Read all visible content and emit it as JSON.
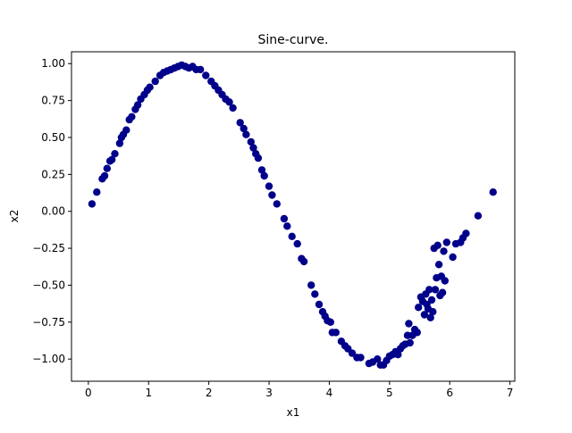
{
  "chart_data": {
    "type": "scatter",
    "title": "Sine-curve.",
    "xlabel": "x1",
    "ylabel": "x2",
    "xlim": [
      -0.28,
      7.08
    ],
    "ylim": [
      -1.15,
      1.08
    ],
    "xticks": [
      0,
      1,
      2,
      3,
      4,
      5,
      6,
      7
    ],
    "yticks": [
      1.0,
      0.75,
      0.5,
      0.25,
      0.0,
      -0.25,
      -0.5,
      -0.75,
      -1.0
    ],
    "ytick_labels": [
      "1.00",
      "0.75",
      "0.50",
      "0.25",
      "0.00",
      "−0.25",
      "−0.50",
      "−0.75",
      "−1.00"
    ],
    "grid": false,
    "legend": "none",
    "marker_color": "#00008b",
    "points": [
      [
        0.06,
        0.05
      ],
      [
        0.14,
        0.13
      ],
      [
        0.23,
        0.22
      ],
      [
        0.27,
        0.24
      ],
      [
        0.31,
        0.29
      ],
      [
        0.36,
        0.34
      ],
      [
        0.39,
        0.35
      ],
      [
        0.44,
        0.39
      ],
      [
        0.52,
        0.46
      ],
      [
        0.55,
        0.5
      ],
      [
        0.58,
        0.52
      ],
      [
        0.63,
        0.55
      ],
      [
        0.68,
        0.62
      ],
      [
        0.72,
        0.64
      ],
      [
        0.78,
        0.69
      ],
      [
        0.82,
        0.72
      ],
      [
        0.87,
        0.76
      ],
      [
        0.93,
        0.79
      ],
      [
        0.98,
        0.82
      ],
      [
        1.02,
        0.84
      ],
      [
        1.11,
        0.88
      ],
      [
        1.19,
        0.92
      ],
      [
        1.25,
        0.94
      ],
      [
        1.31,
        0.95
      ],
      [
        1.37,
        0.96
      ],
      [
        1.43,
        0.97
      ],
      [
        1.49,
        0.98
      ],
      [
        1.55,
        0.99
      ],
      [
        1.61,
        0.98
      ],
      [
        1.67,
        0.97
      ],
      [
        1.73,
        0.98
      ],
      [
        1.79,
        0.96
      ],
      [
        1.86,
        0.96
      ],
      [
        1.95,
        0.92
      ],
      [
        2.04,
        0.88
      ],
      [
        2.1,
        0.85
      ],
      [
        2.16,
        0.82
      ],
      [
        2.22,
        0.79
      ],
      [
        2.28,
        0.76
      ],
      [
        2.34,
        0.74
      ],
      [
        2.4,
        0.7
      ],
      [
        2.52,
        0.6
      ],
      [
        2.58,
        0.56
      ],
      [
        2.62,
        0.52
      ],
      [
        2.7,
        0.47
      ],
      [
        2.74,
        0.43
      ],
      [
        2.78,
        0.39
      ],
      [
        2.82,
        0.36
      ],
      [
        2.88,
        0.28
      ],
      [
        2.92,
        0.24
      ],
      [
        3.0,
        0.17
      ],
      [
        3.05,
        0.11
      ],
      [
        3.13,
        0.05
      ],
      [
        3.25,
        -0.05
      ],
      [
        3.3,
        -0.1
      ],
      [
        3.38,
        -0.17
      ],
      [
        3.47,
        -0.22
      ],
      [
        3.54,
        -0.32
      ],
      [
        3.58,
        -0.34
      ],
      [
        3.7,
        -0.5
      ],
      [
        3.76,
        -0.56
      ],
      [
        3.83,
        -0.63
      ],
      [
        3.89,
        -0.68
      ],
      [
        3.93,
        -0.71
      ],
      [
        3.97,
        -0.74
      ],
      [
        4.02,
        -0.75
      ],
      [
        4.05,
        -0.82
      ],
      [
        4.11,
        -0.82
      ],
      [
        4.2,
        -0.88
      ],
      [
        4.26,
        -0.91
      ],
      [
        4.31,
        -0.93
      ],
      [
        4.38,
        -0.96
      ],
      [
        4.46,
        -0.99
      ],
      [
        4.52,
        -0.99
      ],
      [
        4.66,
        -1.03
      ],
      [
        4.72,
        -1.02
      ],
      [
        4.8,
        -1.0
      ],
      [
        4.85,
        -1.04
      ],
      [
        4.9,
        -1.04
      ],
      [
        4.95,
        -1.01
      ],
      [
        5.0,
        -0.98
      ],
      [
        5.05,
        -0.97
      ],
      [
        5.1,
        -0.95
      ],
      [
        5.14,
        -0.97
      ],
      [
        5.18,
        -0.93
      ],
      [
        5.22,
        -0.91
      ],
      [
        5.26,
        -0.9
      ],
      [
        5.3,
        -0.84
      ],
      [
        5.32,
        -0.76
      ],
      [
        5.34,
        -0.89
      ],
      [
        5.38,
        -0.84
      ],
      [
        5.42,
        -0.8
      ],
      [
        5.46,
        -0.82
      ],
      [
        5.48,
        -0.65
      ],
      [
        5.52,
        -0.58
      ],
      [
        5.55,
        -0.61
      ],
      [
        5.58,
        -0.7
      ],
      [
        5.6,
        -0.56
      ],
      [
        5.62,
        -0.63
      ],
      [
        5.64,
        -0.66
      ],
      [
        5.66,
        -0.53
      ],
      [
        5.68,
        -0.72
      ],
      [
        5.7,
        -0.6
      ],
      [
        5.72,
        -0.68
      ],
      [
        5.74,
        -0.25
      ],
      [
        5.76,
        -0.53
      ],
      [
        5.78,
        -0.45
      ],
      [
        5.8,
        -0.23
      ],
      [
        5.82,
        -0.36
      ],
      [
        5.84,
        -0.57
      ],
      [
        5.86,
        -0.44
      ],
      [
        5.88,
        -0.55
      ],
      [
        5.9,
        -0.27
      ],
      [
        5.92,
        -0.47
      ],
      [
        5.95,
        -0.21
      ],
      [
        6.05,
        -0.31
      ],
      [
        6.1,
        -0.22
      ],
      [
        6.18,
        -0.21
      ],
      [
        6.22,
        -0.18
      ],
      [
        6.27,
        -0.15
      ],
      [
        6.47,
        -0.03
      ],
      [
        6.72,
        0.13
      ]
    ]
  }
}
